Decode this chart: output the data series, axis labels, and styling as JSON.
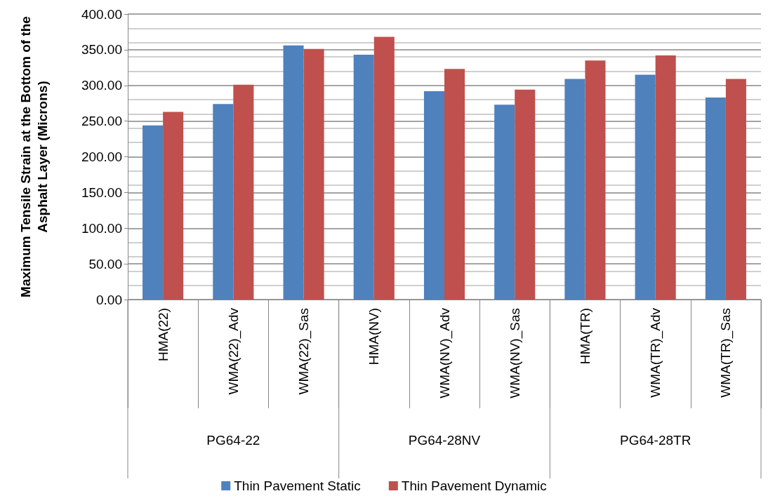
{
  "chart_data": {
    "type": "bar",
    "ylabel": "Maximum Tensile Strain at the Bottom of the\nAsphalt Layer (Microns)",
    "categories": [
      "HMA(22)",
      "WMA(22)_Adv",
      "WMA(22)_Sas",
      "HMA(NV)",
      "WMA(NV)_Adv",
      "WMA(NV)_Sas",
      "HMA(TR)",
      "WMA(TR)_Adv",
      "WMA(TR)_Sas"
    ],
    "series": [
      {
        "name": "Thin Pavement Static",
        "color": "#4f81bd",
        "values": [
          244,
          274,
          356,
          343,
          292,
          273,
          309,
          315,
          283
        ]
      },
      {
        "name": "Thin Pavement Dynamic",
        "color": "#c0504d",
        "values": [
          263,
          301,
          351,
          368,
          323,
          294,
          335,
          342,
          309
        ]
      }
    ],
    "annotations": [
      "PG64-22",
      "PG64-28NV",
      "PG64-28TR"
    ],
    "ylim": [
      0,
      400
    ],
    "yticks": [
      {
        "value": 0,
        "label": "0.00"
      },
      {
        "value": 50,
        "label": "50.00"
      },
      {
        "value": 100,
        "label": "100.00"
      },
      {
        "value": 150,
        "label": "150.00"
      },
      {
        "value": 200,
        "label": "200.00"
      },
      {
        "value": 250,
        "label": "250.00"
      },
      {
        "value": 300,
        "label": "300.00"
      },
      {
        "value": 350,
        "label": "350.00"
      },
      {
        "value": 400,
        "label": "400.00"
      }
    ],
    "grid": true,
    "legend": "bottom"
  }
}
